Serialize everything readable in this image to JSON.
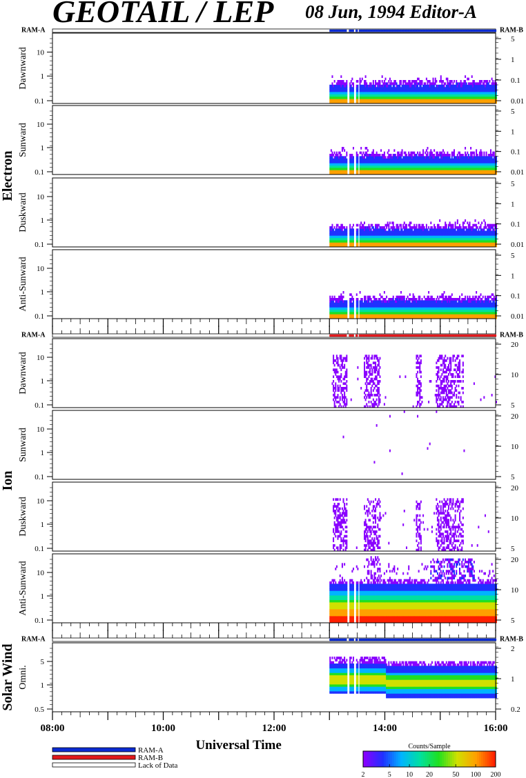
{
  "header": {
    "title": "GEOTAIL / LEP",
    "date_editor": "08 Jun, 1994   Editor-A"
  },
  "sections": [
    {
      "name": "Electron",
      "ram_a": "RAM-A",
      "ram_b": "RAM-B",
      "ram_color": "#0b2bd2"
    },
    {
      "name": "Ion",
      "ram_a": "RAM-A",
      "ram_b": "RAM-B",
      "ram_color": "#e2191c"
    },
    {
      "name": "Solar Wind",
      "ram_a": "RAM-A",
      "ram_b": "RAM-B",
      "ram_color": "#0b2bd2"
    }
  ],
  "x_axis": {
    "label": "Universal Time",
    "ticks": [
      "08:00",
      "10:00",
      "12:00",
      "14:00",
      "16:00"
    ],
    "range_hours": [
      8,
      16
    ],
    "data_start_hour": 13.0,
    "gaps_hours": [
      [
        13.3,
        13.34
      ],
      [
        13.43,
        13.46
      ],
      [
        13.5,
        13.52
      ]
    ]
  },
  "legend": {
    "items": [
      {
        "label": "RAM-A",
        "color": "#0b2bd2"
      },
      {
        "label": "RAM-B",
        "color": "#e2191c"
      },
      {
        "label": "Lack of Data",
        "color": "#ffffff"
      }
    ]
  },
  "colorbar": {
    "title": "Counts/Sample",
    "ticks": [
      "2",
      "5",
      "10",
      "20",
      "50",
      "100",
      "200"
    ],
    "colors": [
      "#8a00ff",
      "#2030ff",
      "#00b4ff",
      "#00e0a0",
      "#20e020",
      "#d0e000",
      "#ffa000",
      "#ff2000"
    ]
  },
  "chart_data": [
    {
      "type": "heatmap",
      "section": "Electron",
      "ylabel": "Dawnward",
      "left_ticks": [
        "10",
        "1",
        "0.1"
      ],
      "right_ticks": [
        "5",
        "1",
        "0.1",
        "0.01"
      ],
      "profile": "electron",
      "seed": 1
    },
    {
      "type": "heatmap",
      "section": "Electron",
      "ylabel": "Sunward",
      "left_ticks": [
        "10",
        "1",
        "0.1"
      ],
      "right_ticks": [
        "5",
        "1",
        "0.1",
        "0.01"
      ],
      "profile": "electron",
      "seed": 2
    },
    {
      "type": "heatmap",
      "section": "Electron",
      "ylabel": "Duskward",
      "left_ticks": [
        "10",
        "1",
        "0.1"
      ],
      "right_ticks": [
        "5",
        "1",
        "0.1",
        "0.01"
      ],
      "profile": "electron",
      "seed": 3
    },
    {
      "type": "heatmap",
      "section": "Electron",
      "ylabel": "Anti-Sunward",
      "left_ticks": [
        "10",
        "1",
        "0.1"
      ],
      "right_ticks": [
        "5",
        "1",
        "0.1",
        "0.01"
      ],
      "profile": "electron",
      "seed": 4
    },
    {
      "type": "heatmap",
      "section": "Ion",
      "ylabel": "Dawnward",
      "left_ticks": [
        "10",
        "1",
        "0.1"
      ],
      "right_ticks": [
        "20",
        "10",
        "5"
      ],
      "profile": "ion_sparse",
      "seed": 5
    },
    {
      "type": "heatmap",
      "section": "Ion",
      "ylabel": "Sunward",
      "left_ticks": [
        "10",
        "1",
        "0.1"
      ],
      "right_ticks": [
        "20",
        "10",
        "5"
      ],
      "profile": "ion_empty",
      "seed": 6
    },
    {
      "type": "heatmap",
      "section": "Ion",
      "ylabel": "Duskward",
      "left_ticks": [
        "10",
        "1",
        "0.1"
      ],
      "right_ticks": [
        "20",
        "10",
        "5"
      ],
      "profile": "ion_sparse",
      "seed": 7
    },
    {
      "type": "heatmap",
      "section": "Ion",
      "ylabel": "Anti-Sunward",
      "left_ticks": [
        "10",
        "1",
        "0.1"
      ],
      "right_ticks": [
        "20",
        "10",
        "5"
      ],
      "profile": "ion_dense",
      "seed": 8
    },
    {
      "type": "heatmap",
      "section": "Solar Wind",
      "ylabel": "Omni.",
      "left_ticks": [
        "5",
        "1",
        "0.5"
      ],
      "right_ticks": [
        "2",
        "1",
        "0.2"
      ],
      "profile": "solarwind",
      "seed": 9
    }
  ]
}
